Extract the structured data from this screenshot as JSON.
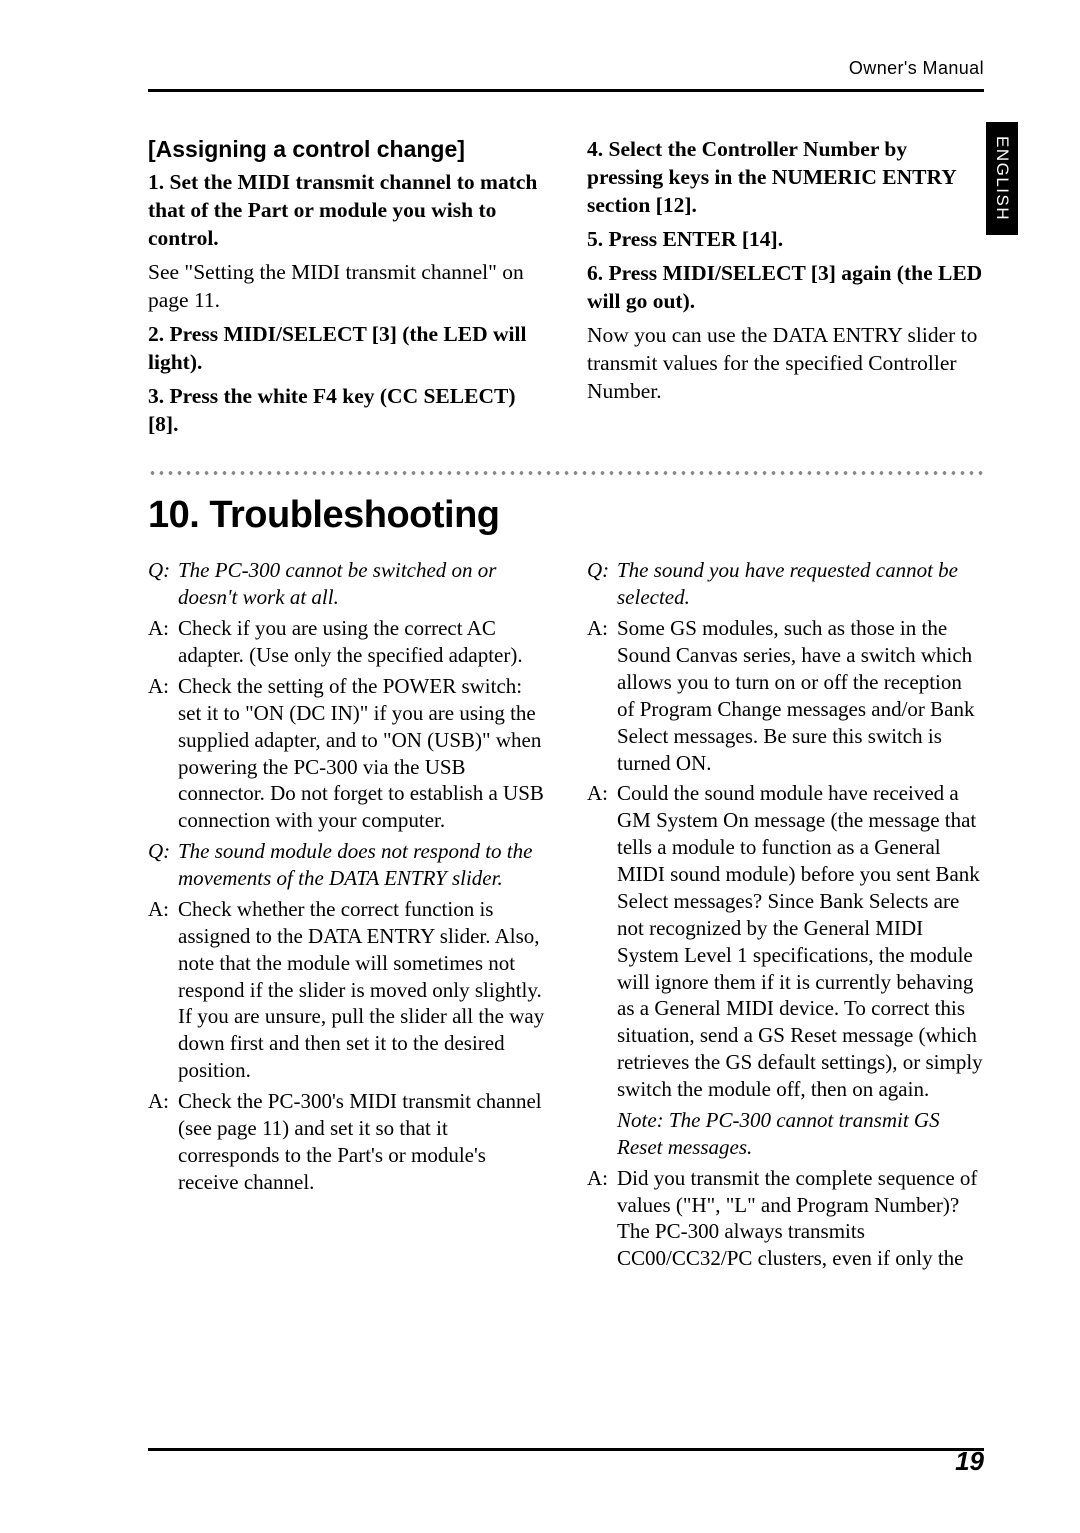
{
  "header": {
    "title": "Owner's Manual"
  },
  "side_tab": "ENGLISH",
  "assign": {
    "heading": "[Assigning a control change]",
    "left_steps": [
      {
        "bold": "1. Set the MIDI transmit channel to match that of the Part or module you wish to control.",
        "plain": ""
      },
      {
        "bold": "",
        "plain": "See \"Setting the MIDI transmit channel\" on page 11."
      },
      {
        "bold": "2. Press MIDI/SELECT [3] (the LED will light).",
        "plain": ""
      },
      {
        "bold": "3. Press the white F4 key (CC SELECT) [8].",
        "plain": ""
      }
    ],
    "right_steps": [
      {
        "bold": "4. Select the Controller Number by pressing keys in the NUMERIC ENTRY section [12].",
        "plain": ""
      },
      {
        "bold": "5. Press ENTER [14].",
        "plain": ""
      },
      {
        "bold": "6. Press MIDI/SELECT [3] again (the LED will go out).",
        "plain": ""
      },
      {
        "bold": "",
        "plain": "Now you can use the DATA ENTRY slider to transmit values for the specified Controller Number."
      }
    ]
  },
  "section": {
    "title": "10. Troubleshooting"
  },
  "trouble": {
    "left": [
      {
        "type": "q",
        "label": "Q:",
        "text": "The PC-300 cannot be switched on or doesn't work at all."
      },
      {
        "type": "a",
        "label": "A:",
        "text": "Check if you are using the correct AC adapter. (Use only the specified adapter)."
      },
      {
        "type": "a",
        "label": "A:",
        "text": "Check the setting of the POWER switch: set it to \"ON (DC IN)\" if you are using the supplied adapter, and to \"ON (USB)\" when powering the PC-300 via the USB connector. Do not forget to establish a USB connection with your computer."
      },
      {
        "type": "q",
        "label": "Q:",
        "text": "The sound module does not respond to the movements of the DATA ENTRY slider."
      },
      {
        "type": "a",
        "label": "A:",
        "text": "Check whether the correct function is assigned to the DATA ENTRY slider. Also, note that the module will sometimes not respond if the slider is moved only slightly. If you are unsure, pull the slider all the way down first and then set it to the desired position."
      },
      {
        "type": "a",
        "label": "A:",
        "text": "Check the PC-300's MIDI transmit channel (see page 11) and set it so that it corresponds to the Part's or module's receive channel."
      }
    ],
    "right": [
      {
        "type": "q",
        "label": "Q:",
        "text": "The sound you have requested cannot be selected."
      },
      {
        "type": "a",
        "label": "A:",
        "text": "Some GS modules, such as those in the Sound Canvas series, have a switch which allows you to turn on or off the reception of Program Change messages and/or Bank Select messages. Be sure this switch is turned ON."
      },
      {
        "type": "a",
        "label": "A:",
        "text": "Could the sound module have received a GM System On message (the message that tells a module to function as a General MIDI sound module) before you sent Bank Select messages? Since Bank Selects are not recognized by the General MIDI System Level 1 specifications, the module will ignore them if it is currently behaving as a General MIDI device. To correct this situation, send a GS Reset message (which retrieves the GS default settings), or simply switch the module off, then on again."
      },
      {
        "type": "note",
        "label": "",
        "text": "Note: The PC-300 cannot transmit GS Reset messages."
      },
      {
        "type": "a",
        "label": "A:",
        "text": "Did you transmit the complete sequence of values (\"H\", \"L\" and Program Number)? The PC-300 always transmits CC00/CC32/PC clusters, even if only the"
      }
    ]
  },
  "page_number": "19"
}
